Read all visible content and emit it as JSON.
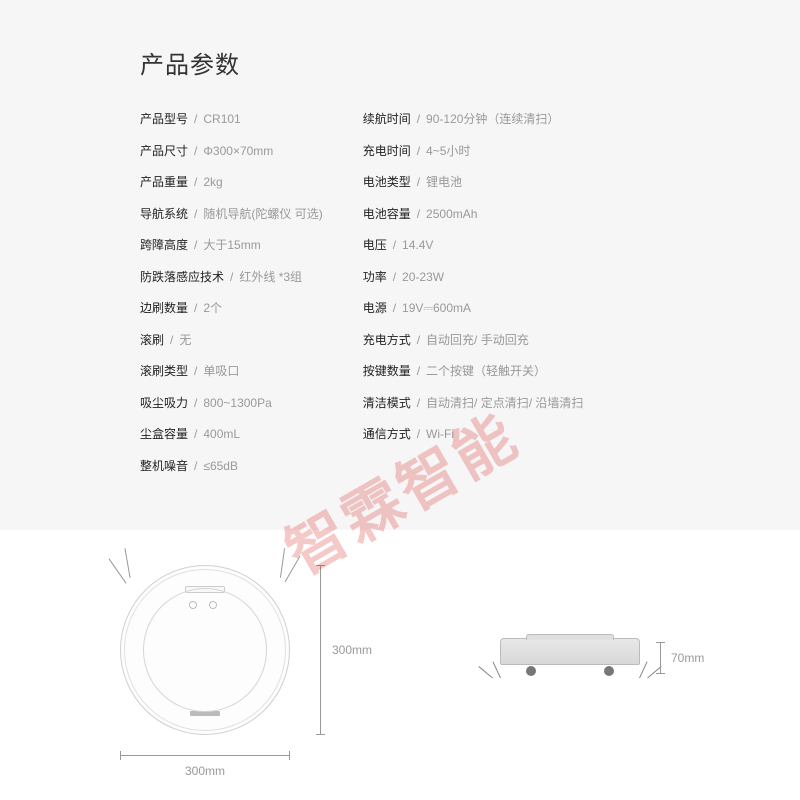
{
  "title": "产品参数",
  "separator": "/",
  "left_specs": [
    {
      "label": "产品型号",
      "value": "CR101"
    },
    {
      "label": "产品尺寸",
      "value": "Φ300×70mm"
    },
    {
      "label": "产品重量",
      "value": "2kg"
    },
    {
      "label": "导航系统",
      "value": "随机导航(陀螺仪 可选)"
    },
    {
      "label": "跨障高度",
      "value": "大于15mm"
    },
    {
      "label": "防跌落感应技术",
      "value": "红外线 *3组"
    },
    {
      "label": "边刷数量",
      "value": "2个"
    },
    {
      "label": "滚刷",
      "value": "无"
    },
    {
      "label": "滚刷类型",
      "value": "单吸口"
    },
    {
      "label": "吸尘吸力",
      "value": "800~1300Pa"
    },
    {
      "label": "尘盒容量",
      "value": "400mL"
    },
    {
      "label": "整机噪音",
      "value": "≤65dB"
    }
  ],
  "right_specs": [
    {
      "label": "续航时间",
      "value": "90-120分钟（连续清扫）"
    },
    {
      "label": "充电时间",
      "value": "4~5小时"
    },
    {
      "label": "电池类型",
      "value": "锂电池"
    },
    {
      "label": "电池容量",
      "value": "2500mAh"
    },
    {
      "label": "电压",
      "value": "14.4V"
    },
    {
      "label": "功率",
      "value": "20-23W"
    },
    {
      "label": "电源",
      "value": "19V⎓600mA"
    },
    {
      "label": "充电方式",
      "value": "自动回充/ 手动回充"
    },
    {
      "label": "按键数量",
      "value": "二个按键（轻触开关）"
    },
    {
      "label": "清洁模式",
      "value": "自动清扫/ 定点清扫/ 沿墙清扫"
    },
    {
      "label": "通信方式",
      "value": "Wi-Fi"
    }
  ],
  "dimensions": {
    "width": "300mm",
    "height": "300mm",
    "thickness": "70mm"
  },
  "watermark": "智霖智能",
  "colors": {
    "bg_top": "#f6f6f6",
    "bg_bottom": "#ffffff",
    "text_label": "#222222",
    "text_value": "#999999",
    "watermark": "rgba(220,40,40,0.25)"
  }
}
